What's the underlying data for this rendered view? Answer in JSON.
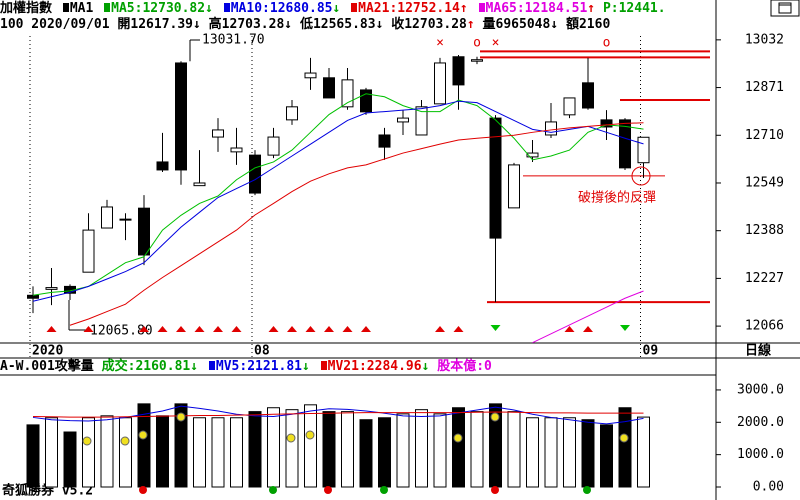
{
  "header": {
    "row1": [
      {
        "text": "加權指數",
        "color": "#000000"
      },
      {
        "text": "MA1",
        "color": "#000000",
        "box": "#000000"
      },
      {
        "text": "MA5:12730.82",
        "color": "#00a000",
        "box": "#00a000",
        "arrow": "↓",
        "arrow_color": "#00a000"
      },
      {
        "text": "MA10:12680.85",
        "color": "#0000e0",
        "box": "#0000e0",
        "arrow": "↓",
        "arrow_color": "#00a000"
      },
      {
        "text": "MA21:12752.14",
        "color": "#e00000",
        "box": "#e00000",
        "arrow": "↑",
        "arrow_color": "#e00000"
      },
      {
        "text": "MA65:12184.51",
        "color": "#e000e0",
        "box": "#e000e0",
        "arrow": "↑",
        "arrow_color": "#e00000"
      },
      {
        "text": "P:12441.",
        "color": "#00a000"
      }
    ],
    "row2": [
      {
        "text": "100 2020/09/01 開12617.39",
        "color": "#000000",
        "arrow": "↓",
        "arrow_color": "#000000"
      },
      {
        "text": "高12703.28",
        "color": "#000000",
        "arrow": "↓",
        "arrow_color": "#000000"
      },
      {
        "text": "低12565.83",
        "color": "#000000",
        "arrow": "↓",
        "arrow_color": "#000000"
      },
      {
        "text": "收12703.28",
        "color": "#000000",
        "arrow": "↑",
        "arrow_color": "#e00000"
      },
      {
        "text": "量6965048",
        "color": "#000000",
        "arrow": "↓",
        "arrow_color": "#000000"
      },
      {
        "text": "額2160",
        "color": "#000000"
      }
    ],
    "volume_row": [
      {
        "text": "A-W.001攻擊量",
        "color": "#000000"
      },
      {
        "text": "成交:2160.81",
        "color": "#00a000",
        "arrow": "↓",
        "arrow_color": "#00a000"
      },
      {
        "text": "MV5:2121.81",
        "color": "#0000e0",
        "box": "#0000e0",
        "arrow": "↓",
        "arrow_color": "#00a000"
      },
      {
        "text": "MV21:2284.96",
        "color": "#e00000",
        "box": "#e00000",
        "arrow": "↓",
        "arrow_color": "#00a000"
      },
      {
        "text": "股本億:0",
        "color": "#e000e0"
      }
    ],
    "period": "日線",
    "footer": "奇狐勝券 v5.2"
  },
  "chart_data": [
    {
      "type": "candlestick",
      "categories": [
        "2020",
        null,
        null,
        null,
        null,
        null,
        null,
        null,
        null,
        null,
        null,
        null,
        "08",
        null,
        null,
        null,
        null,
        null,
        null,
        null,
        null,
        null,
        null,
        null,
        null,
        null,
        null,
        null,
        null,
        null,
        null,
        null,
        null,
        "09"
      ],
      "open": [
        12170,
        12190,
        12200,
        12248,
        12397,
        12424,
        12464,
        12620,
        12954,
        12540,
        12704,
        12654,
        12643,
        12643,
        12762,
        12904,
        12904,
        12806,
        12863,
        12711,
        12755,
        12711,
        12816,
        12975,
        12960,
        12768,
        12465,
        12637,
        12711,
        12779,
        12887,
        12762,
        12762,
        12617.39
      ],
      "high": [
        12200,
        12262,
        12207,
        12447,
        12492,
        12447,
        12508,
        12718,
        12960,
        12660,
        12768,
        12735,
        12660,
        12735,
        12829,
        12971,
        12937,
        12937,
        12870,
        12735,
        12795,
        12829,
        12971,
        12981,
        12975,
        12778,
        12617,
        12694,
        12819,
        12836,
        12971,
        12795,
        12768,
        12703.28
      ],
      "low": [
        12110,
        12137,
        12154,
        12248,
        12397,
        12356,
        12272,
        12586,
        12543,
        12540,
        12654,
        12610,
        12508,
        12633,
        12745,
        12863,
        12836,
        12796,
        12779,
        12627,
        12711,
        12711,
        12816,
        12796,
        12950,
        12147,
        12465,
        12620,
        12701,
        12768,
        12796,
        12694,
        12593,
        12565.83
      ],
      "close": [
        12160,
        12196,
        12177,
        12390,
        12468,
        12427,
        12306,
        12593,
        12593,
        12549,
        12728,
        12667,
        12515,
        12704,
        12806,
        12920,
        12836,
        12897,
        12789,
        12670,
        12768,
        12806,
        12954,
        12880,
        12965,
        12363,
        12610,
        12650,
        12755,
        12836,
        12802,
        12738,
        12600,
        12703.28
      ],
      "series": [
        {
          "name": "MA5",
          "color": "#00c000",
          "values": [
            12170,
            12180,
            12185,
            12200,
            12240,
            12280,
            12300,
            12390,
            12440,
            12480,
            12505,
            12560,
            12600,
            12620,
            12660,
            12720,
            12780,
            12820,
            12850,
            12840,
            12810,
            12790,
            12790,
            12829,
            12810,
            12762,
            12700,
            12627,
            12640,
            12660,
            12720,
            12745,
            12740,
            12730.82
          ]
        },
        {
          "name": "MA10",
          "color": "#0000e0",
          "values": [
            12150,
            12165,
            12180,
            12200,
            12225,
            12250,
            12280,
            12340,
            12400,
            12450,
            12500,
            12530,
            12560,
            12600,
            12640,
            12680,
            12720,
            12760,
            12785,
            12790,
            12795,
            12800,
            12810,
            12825,
            12820,
            12790,
            12760,
            12730,
            12720,
            12730,
            12740,
            12720,
            12700,
            12680.85
          ]
        },
        {
          "name": "MA21",
          "color": "#e00000",
          "values": [
            null,
            null,
            12069,
            12090,
            12115,
            12140,
            12187,
            12230,
            12270,
            12310,
            12350,
            12390,
            12441,
            12480,
            12520,
            12555,
            12580,
            12600,
            12610,
            12630,
            12650,
            12665,
            12680,
            12694,
            12700,
            12705,
            12710,
            12720,
            12728,
            12735,
            12740,
            12745,
            12750,
            12752.14
          ]
        },
        {
          "name": "MA65",
          "color": "#e000e0",
          "values": [
            null,
            null,
            null,
            null,
            null,
            null,
            null,
            null,
            null,
            null,
            null,
            null,
            null,
            null,
            null,
            null,
            null,
            null,
            null,
            null,
            null,
            null,
            null,
            null,
            null,
            null,
            null,
            12010,
            12040,
            12070,
            12100,
            12130,
            12160,
            12184.51
          ]
        }
      ],
      "ylim": [
        12009,
        13045
      ],
      "yticks": [
        13032,
        12871,
        12710,
        12549,
        12388,
        12227,
        12066
      ],
      "hlines": [
        {
          "value": 12993,
          "color": "#e00000"
        },
        {
          "value": 12973,
          "color": "#e00000"
        },
        {
          "value": 12829,
          "color": "#e00000"
        },
        {
          "value": 12147,
          "color": "#e00000"
        },
        {
          "value": 12573,
          "color": "#e00000"
        }
      ],
      "annotations": [
        {
          "text": "13031.70"
        },
        {
          "text": "12065.80"
        },
        {
          "text": "破撐後的反彈",
          "color": "#e00000"
        }
      ],
      "markers": [
        {
          "text": "×",
          "color": "#e00000"
        },
        {
          "text": "o",
          "color": "#e00000"
        },
        {
          "text": "×",
          "color": "#e00000"
        },
        {
          "text": "o",
          "color": "#e00000"
        }
      ]
    },
    {
      "type": "bar",
      "values": [
        1920,
        2140,
        1700,
        2140,
        2200,
        2140,
        2570,
        2200,
        2570,
        2140,
        2140,
        2140,
        2330,
        2450,
        2390,
        2540,
        2330,
        2330,
        2080,
        2140,
        2260,
        2390,
        2260,
        2450,
        2330,
        2570,
        2330,
        2140,
        2140,
        2140,
        2080,
        1920,
        2450,
        2160.81
      ],
      "series": [
        {
          "name": "MV5",
          "color": "#0000e0",
          "values": [
            2150,
            2080,
            2050,
            2040,
            2080,
            2150,
            2250,
            2350,
            2500,
            2430,
            2350,
            2250,
            2200,
            2180,
            2250,
            2350,
            2420,
            2400,
            2350,
            2280,
            2200,
            2180,
            2200,
            2290,
            2380,
            2470,
            2380,
            2250,
            2150,
            2080,
            2000,
            1950,
            2020,
            2121.81
          ]
        },
        {
          "name": "MV21",
          "color": "#e00000",
          "values": [
            2180,
            2170,
            2160,
            2160,
            2160,
            2170,
            2180,
            2190,
            2200,
            2210,
            2210,
            2220,
            2230,
            2250,
            2260,
            2270,
            2280,
            2290,
            2300,
            2300,
            2300,
            2300,
            2300,
            2300,
            2310,
            2320,
            2310,
            2300,
            2290,
            2290,
            2285,
            2285,
            2285,
            2284.96
          ]
        }
      ],
      "ylim": [
        0,
        3400
      ],
      "yticks": [
        {
          "value": 3000,
          "label": "3000.0"
        },
        {
          "value": 2000,
          "label": "2000.0"
        },
        {
          "value": 1000,
          "label": "1000.0"
        },
        {
          "value": 0,
          "label": "0.00"
        }
      ]
    }
  ]
}
